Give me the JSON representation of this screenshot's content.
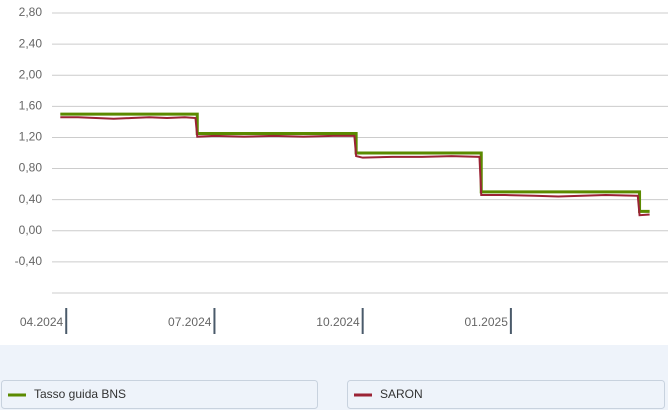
{
  "chart_data": {
    "type": "line",
    "xlim": [
      2024.226,
      2025.265
    ],
    "xticks": [
      {
        "value": 2024.25,
        "label": "04.2024"
      },
      {
        "value": 2024.5,
        "label": "07.2024"
      },
      {
        "value": 2024.75,
        "label": "10.2024"
      },
      {
        "value": 2025.0,
        "label": "01.2025"
      }
    ],
    "ylim": [
      -0.8,
      2.8
    ],
    "yticks": [
      {
        "value": 2.8,
        "label": "2,80"
      },
      {
        "value": 2.4,
        "label": "2,40"
      },
      {
        "value": 2.0,
        "label": "2,00"
      },
      {
        "value": 1.6,
        "label": "1,60"
      },
      {
        "value": 1.2,
        "label": "1,20"
      },
      {
        "value": 0.8,
        "label": "0,80"
      },
      {
        "value": 0.4,
        "label": "0,40"
      },
      {
        "value": 0.0,
        "label": "0,00"
      },
      {
        "value": -0.4,
        "label": "-0,40"
      }
    ],
    "grid": true,
    "series": [
      {
        "name": "Tasso guida BNS",
        "color": "#5b8a00",
        "x": [
          2024.24,
          2024.471,
          2024.471,
          2024.739,
          2024.739,
          2024.95,
          2024.95,
          2025.217,
          2025.217,
          2025.234
        ],
        "values": [
          1.5,
          1.5,
          1.25,
          1.25,
          1.0,
          1.0,
          0.5,
          0.5,
          0.25,
          0.25
        ]
      },
      {
        "name": "SARON",
        "color": "#9b2335",
        "x": [
          2024.24,
          2024.27,
          2024.3,
          2024.33,
          2024.36,
          2024.39,
          2024.42,
          2024.45,
          2024.468,
          2024.471,
          2024.5,
          2024.55,
          2024.6,
          2024.65,
          2024.7,
          2024.736,
          2024.739,
          2024.75,
          2024.8,
          2024.85,
          2024.9,
          2024.947,
          2024.95,
          2024.99,
          2025.04,
          2025.08,
          2025.12,
          2025.16,
          2025.214,
          2025.217,
          2025.234
        ],
        "values": [
          1.46,
          1.46,
          1.45,
          1.44,
          1.45,
          1.46,
          1.45,
          1.46,
          1.45,
          1.21,
          1.22,
          1.21,
          1.22,
          1.21,
          1.22,
          1.22,
          0.96,
          0.94,
          0.95,
          0.95,
          0.96,
          0.95,
          0.46,
          0.46,
          0.45,
          0.44,
          0.45,
          0.46,
          0.45,
          0.2,
          0.21
        ]
      }
    ]
  }
}
